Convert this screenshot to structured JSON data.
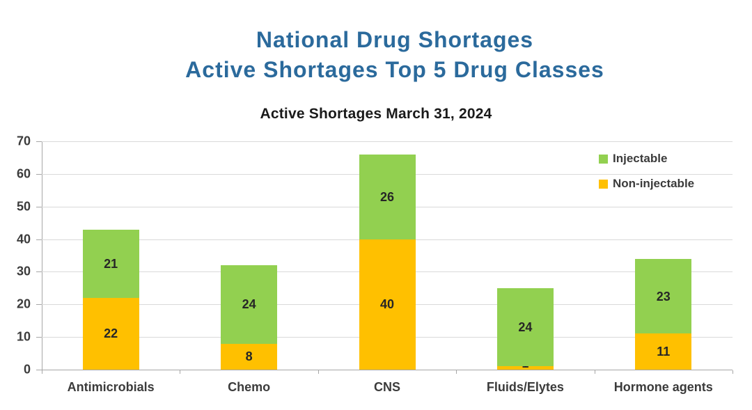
{
  "page": {
    "title_line1": "National Drug Shortages",
    "title_line2": "Active Shortages Top 5 Drug Classes"
  },
  "chart_data": {
    "type": "bar",
    "stacked": true,
    "title": "Active Shortages March 31, 2024",
    "categories": [
      "Antimicrobials",
      "Chemo",
      "CNS",
      "Fluids/Elytes",
      "Hormone agents"
    ],
    "series": [
      {
        "name": "Non-injectable",
        "color": "#FFC000",
        "values": [
          22,
          8,
          40,
          1,
          11
        ]
      },
      {
        "name": "Injectable",
        "color": "#92D050",
        "values": [
          21,
          24,
          26,
          24,
          23
        ]
      }
    ],
    "xlabel": "",
    "ylabel": "",
    "ylim": [
      0,
      70
    ],
    "yticks": [
      0,
      10,
      20,
      30,
      40,
      50,
      60,
      70
    ],
    "grid": true,
    "legend_position": "top-right",
    "legend_order_top_to_bottom": [
      "Injectable",
      "Non-injectable"
    ]
  },
  "colors": {
    "title_blue": "#2B6A9C",
    "axis_line": "#A6A6A6",
    "gridline": "#D9D9D9",
    "text_dark": "#3B3B3B"
  }
}
